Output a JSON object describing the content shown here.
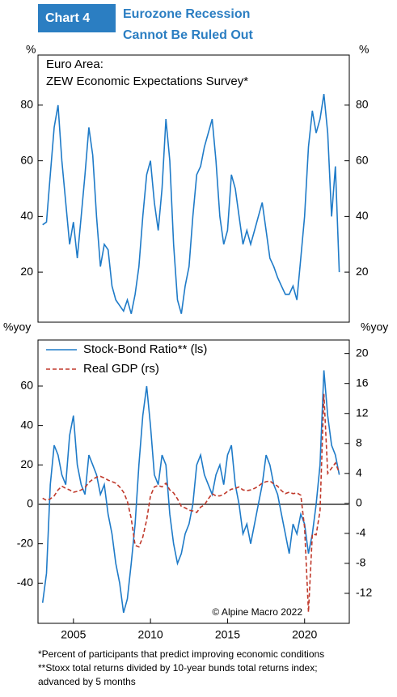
{
  "header": {
    "label": "Chart 4",
    "title": [
      "Eurozone Recession",
      "Cannot Be Ruled Out"
    ]
  },
  "chart_data": [
    {
      "type": "line",
      "title": "Euro Area:",
      "subtitle": "ZEW Economic Expectations Survey*",
      "y_label": "%",
      "y2_label": "%",
      "xlim": [
        2002.7,
        2022.9
      ],
      "ylim": [
        2,
        98
      ],
      "yticks": [
        20,
        40,
        60,
        80
      ],
      "y2lim": [
        2,
        98
      ],
      "y2ticks": [
        20,
        40,
        60,
        80
      ],
      "x": [
        2003,
        2003.25,
        2003.5,
        2003.75,
        2004,
        2004.25,
        2004.5,
        2004.75,
        2005,
        2005.25,
        2005.5,
        2005.75,
        2006,
        2006.25,
        2006.5,
        2006.75,
        2007,
        2007.25,
        2007.5,
        2007.75,
        2008,
        2008.25,
        2008.5,
        2008.75,
        2009,
        2009.25,
        2009.5,
        2009.75,
        2010,
        2010.25,
        2010.5,
        2010.75,
        2011,
        2011.25,
        2011.5,
        2011.75,
        2012,
        2012.25,
        2012.5,
        2012.75,
        2013,
        2013.25,
        2013.5,
        2013.75,
        2014,
        2014.25,
        2014.5,
        2014.75,
        2015,
        2015.25,
        2015.5,
        2015.75,
        2016,
        2016.25,
        2016.5,
        2016.75,
        2017,
        2017.25,
        2017.5,
        2017.75,
        2018,
        2018.25,
        2018.5,
        2018.75,
        2019,
        2019.25,
        2019.5,
        2019.75,
        2020,
        2020.25,
        2020.5,
        2020.75,
        2021,
        2021.25,
        2021.5,
        2021.75,
        2022,
        2022.25
      ],
      "series": [
        {
          "name": "ZEW",
          "color": "#1f7bc8",
          "values": [
            37,
            38,
            55,
            72,
            80,
            60,
            45,
            30,
            38,
            25,
            40,
            55,
            72,
            62,
            40,
            22,
            30,
            28,
            15,
            10,
            8,
            6,
            10,
            5,
            12,
            22,
            40,
            55,
            60,
            45,
            35,
            50,
            75,
            60,
            30,
            10,
            5,
            15,
            22,
            40,
            55,
            58,
            65,
            70,
            75,
            60,
            40,
            30,
            35,
            55,
            50,
            40,
            30,
            35,
            30,
            35,
            40,
            45,
            35,
            25,
            22,
            18,
            15,
            12,
            12,
            15,
            10,
            25,
            40,
            65,
            78,
            70,
            75,
            84,
            70,
            40,
            58,
            20
          ]
        }
      ]
    },
    {
      "type": "line",
      "y_label": "%yoy",
      "y2_label": "%yoy",
      "xlim": [
        2002.7,
        2022.9
      ],
      "xticks": [
        2005,
        2010,
        2015,
        2020
      ],
      "ylim": [
        -60.4,
        83.4
      ],
      "yticks": [
        -40,
        -20,
        0,
        20,
        40,
        60
      ],
      "y2lim": [
        -16,
        21.8
      ],
      "y2ticks": [
        -12,
        -8,
        -4,
        0,
        4,
        8,
        12,
        16,
        20
      ],
      "hline": 0,
      "legend": "upper left",
      "annotation": "© Alpine Macro 2022",
      "x": [
        2003,
        2003.25,
        2003.5,
        2003.75,
        2004,
        2004.25,
        2004.5,
        2004.75,
        2005,
        2005.25,
        2005.5,
        2005.75,
        2006,
        2006.25,
        2006.5,
        2006.75,
        2007,
        2007.25,
        2007.5,
        2007.75,
        2008,
        2008.25,
        2008.5,
        2008.75,
        2009,
        2009.25,
        2009.5,
        2009.75,
        2010,
        2010.25,
        2010.5,
        2010.75,
        2011,
        2011.25,
        2011.5,
        2011.75,
        2012,
        2012.25,
        2012.5,
        2012.75,
        2013,
        2013.25,
        2013.5,
        2013.75,
        2014,
        2014.25,
        2014.5,
        2014.75,
        2015,
        2015.25,
        2015.5,
        2015.75,
        2016,
        2016.25,
        2016.5,
        2016.75,
        2017,
        2017.25,
        2017.5,
        2017.75,
        2018,
        2018.25,
        2018.5,
        2018.75,
        2019,
        2019.25,
        2019.5,
        2019.75,
        2020,
        2020.25,
        2020.5,
        2020.75,
        2021,
        2021.25,
        2021.5,
        2021.75,
        2022,
        2022.25
      ],
      "series": [
        {
          "name": "Stock-Bond Ratio** (ls)",
          "color": "#1f7bc8",
          "dash": false,
          "values": [
            -50,
            -35,
            10,
            30,
            25,
            15,
            10,
            35,
            45,
            20,
            10,
            5,
            25,
            20,
            15,
            5,
            10,
            -5,
            -15,
            -30,
            -40,
            -55,
            -48,
            -30,
            -10,
            20,
            45,
            60,
            40,
            15,
            10,
            25,
            20,
            -5,
            -20,
            -30,
            -25,
            -15,
            -10,
            0,
            20,
            25,
            15,
            10,
            5,
            15,
            20,
            10,
            25,
            30,
            10,
            0,
            -15,
            -10,
            -20,
            -10,
            0,
            10,
            25,
            20,
            10,
            5,
            -5,
            -15,
            -25,
            -10,
            -15,
            -5,
            -10,
            -25,
            -15,
            0,
            20,
            68,
            45,
            30,
            25,
            15
          ]
        },
        {
          "name": "Real GDP (rs)",
          "color": "#c0392b",
          "dash": true,
          "axis": "y2",
          "values": [
            0.7,
            0.4,
            0.6,
            1.0,
            1.8,
            2.3,
            2.0,
            1.8,
            1.5,
            1.6,
            1.8,
            2.1,
            2.8,
            3.2,
            3.5,
            3.6,
            3.4,
            3.1,
            2.9,
            2.7,
            2.2,
            1.5,
            0.3,
            -2.0,
            -5.6,
            -5.8,
            -4.5,
            -2.2,
            1.0,
            2.2,
            2.4,
            2.2,
            2.7,
            1.8,
            1.4,
            0.6,
            -0.4,
            -0.6,
            -0.9,
            -1.0,
            -1.2,
            -0.5,
            -0.2,
            0.6,
            1.3,
            1.0,
            1.0,
            1.2,
            1.6,
            1.9,
            2.0,
            2.2,
            1.8,
            1.7,
            1.8,
            2.0,
            2.3,
            2.7,
            2.9,
            3.0,
            2.6,
            2.3,
            1.7,
            1.3,
            1.5,
            1.3,
            1.4,
            1.1,
            -3.2,
            -14.5,
            -4.1,
            -4.2,
            -1.0,
            14.6,
            4.0,
            4.7,
            5.4,
            4.1
          ]
        }
      ]
    }
  ],
  "footnotes": [
    "*Percent of participants that predict improving economic conditions",
    "**Stoxx total returns divided by 10-year bunds total returns index;",
    "advanced by 5 months"
  ]
}
